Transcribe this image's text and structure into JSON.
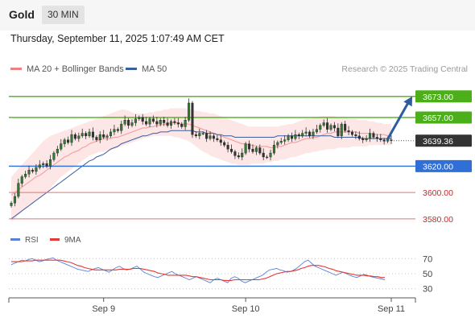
{
  "header": {
    "title": "Gold",
    "timeframe": "30 MIN",
    "datetime": "Thursday, September 11, 2025 1:07:49 AM CET"
  },
  "legend": {
    "ma20_label": "MA 20 + Bollinger Bands",
    "ma50_label": "MA 50",
    "credit": "Research © 2025 Trading Central"
  },
  "rsi_legend": {
    "rsi_label": "RSI",
    "ma_label": "9MA"
  },
  "colors": {
    "resistance": "#4caf1a",
    "support": "#2f6fd6",
    "support_strong": "#e57373",
    "ma20": "#f4a3a3",
    "ma50": "#3a5f9f",
    "bollinger_fill": "#fde2e2",
    "candle_up": "#2e7d32",
    "candle_down": "#333333",
    "current_price_tag": "#333333",
    "arrow": "#2d5d9f",
    "rsi_line": "#5b7fd6",
    "rsi_ma": "#e53935"
  },
  "chart_data": {
    "type": "candlestick",
    "title": "Gold",
    "timeframe": "30 MIN",
    "y_range": [
      3575,
      3690
    ],
    "current_price": 3639.36,
    "levels": [
      {
        "value": 3673.0,
        "label": "3673.00",
        "kind": "resistance"
      },
      {
        "value": 3657.0,
        "label": "3657.00",
        "kind": "resistance"
      },
      {
        "value": 3620.0,
        "label": "3620.00",
        "kind": "support"
      },
      {
        "value": 3600.0,
        "label": "3600.00",
        "kind": "support_strong"
      },
      {
        "value": 3580.0,
        "label": "3580.00",
        "kind": "support_strong"
      }
    ],
    "projection": {
      "from": 3640,
      "to": 3673
    },
    "x_labels": [
      "Sep 9",
      "Sep 10",
      "Sep 11"
    ],
    "x_label_index": [
      26,
      66,
      107
    ],
    "closes": [
      3592,
      3597,
      3607,
      3612,
      3614,
      3617,
      3616,
      3619,
      3621,
      3622,
      3620,
      3625,
      3630,
      3633,
      3637,
      3640,
      3638,
      3644,
      3641,
      3643,
      3645,
      3643,
      3646,
      3642,
      3640,
      3644,
      3642,
      3643,
      3646,
      3648,
      3647,
      3652,
      3655,
      3651,
      3653,
      3656,
      3657,
      3654,
      3652,
      3656,
      3654,
      3652,
      3655,
      3653,
      3651,
      3654,
      3653,
      3652,
      3650,
      3655,
      3668,
      3644,
      3643,
      3645,
      3645,
      3641,
      3643,
      3641,
      3640,
      3638,
      3636,
      3633,
      3631,
      3628,
      3627,
      3630,
      3637,
      3633,
      3631,
      3634,
      3630,
      3627,
      3627,
      3630,
      3636,
      3638,
      3639,
      3640,
      3643,
      3641,
      3644,
      3643,
      3645,
      3646,
      3643,
      3646,
      3648,
      3651,
      3653,
      3648,
      3651,
      3649,
      3643,
      3652,
      3647,
      3646,
      3644,
      3643,
      3641,
      3640,
      3641,
      3645,
      3642,
      3641,
      3640,
      3639,
      3640,
      3639.36
    ],
    "ma50": [
      3580,
      3582,
      3584,
      3586,
      3588,
      3590,
      3592,
      3594,
      3596,
      3598,
      3600,
      3602,
      3604,
      3606,
      3608,
      3610,
      3612,
      3614,
      3616,
      3618,
      3620,
      3622,
      3624,
      3625,
      3627,
      3628,
      3629,
      3631,
      3633,
      3634,
      3635,
      3637,
      3638,
      3639,
      3640,
      3641,
      3642,
      3643,
      3643,
      3644,
      3645,
      3645,
      3646,
      3646,
      3646,
      3647,
      3647,
      3647,
      3647,
      3647,
      3647,
      3647,
      3646,
      3646,
      3646,
      3645,
      3645,
      3645,
      3644,
      3644,
      3643,
      3643,
      3643,
      3642,
      3642,
      3642,
      3642,
      3642,
      3642,
      3642,
      3642,
      3642,
      3642,
      3642,
      3642,
      3643,
      3643,
      3643,
      3643,
      3643,
      3643,
      3643,
      3643,
      3643,
      3643,
      3643,
      3643,
      3643,
      3643,
      3643,
      3643,
      3642,
      3642,
      3642,
      3642,
      3642,
      3642,
      3642,
      3642,
      3641,
      3641,
      3641,
      3641,
      3641,
      3641,
      3641,
      3641,
      3641
    ],
    "ma20": [
      3598,
      3600,
      3602,
      3604,
      3606,
      3608,
      3610,
      3612,
      3613,
      3615,
      3617,
      3619,
      3621,
      3623,
      3625,
      3627,
      3628,
      3630,
      3631,
      3632,
      3634,
      3635,
      3637,
      3638,
      3639,
      3640,
      3641,
      3641,
      3641,
      3642,
      3642,
      3643,
      3644,
      3645,
      3646,
      3647,
      3648,
      3649,
      3649,
      3650,
      3650,
      3651,
      3651,
      3652,
      3652,
      3653,
      3653,
      3653,
      3652,
      3652,
      3652,
      3651,
      3650,
      3649,
      3648,
      3647,
      3646,
      3645,
      3644,
      3643,
      3642,
      3641,
      3640,
      3639,
      3638,
      3637,
      3637,
      3636,
      3636,
      3635,
      3635,
      3635,
      3635,
      3634,
      3634,
      3635,
      3635,
      3636,
      3637,
      3638,
      3638,
      3639,
      3640,
      3641,
      3641,
      3642,
      3642,
      3643,
      3644,
      3645,
      3645,
      3646,
      3646,
      3646,
      3646,
      3646,
      3646,
      3646,
      3645,
      3645,
      3645,
      3645,
      3644,
      3644,
      3644,
      3644,
      3643,
      3643
    ],
    "bb_upper": [
      3612,
      3615,
      3618,
      3621,
      3624,
      3627,
      3630,
      3633,
      3636,
      3639,
      3641,
      3643,
      3644,
      3645,
      3646,
      3647,
      3648,
      3649,
      3650,
      3651,
      3652,
      3653,
      3654,
      3655,
      3656,
      3657,
      3658,
      3659,
      3660,
      3661,
      3662,
      3663,
      3663,
      3662,
      3661,
      3660,
      3660,
      3660,
      3660,
      3661,
      3661,
      3662,
      3662,
      3663,
      3663,
      3664,
      3664,
      3664,
      3664,
      3664,
      3663,
      3663,
      3662,
      3662,
      3661,
      3661,
      3660,
      3660,
      3659,
      3658,
      3657,
      3656,
      3655,
      3654,
      3653,
      3652,
      3651,
      3650,
      3650,
      3650,
      3650,
      3650,
      3650,
      3650,
      3650,
      3650,
      3651,
      3651,
      3652,
      3652,
      3653,
      3654,
      3655,
      3656,
      3656,
      3657,
      3657,
      3658,
      3658,
      3658,
      3658,
      3658,
      3657,
      3657,
      3657,
      3656,
      3656,
      3656,
      3655,
      3655,
      3655,
      3654,
      3654,
      3653,
      3653,
      3652,
      3652,
      3652
    ],
    "bb_lower": [
      3578,
      3580,
      3583,
      3585,
      3588,
      3590,
      3592,
      3594,
      3596,
      3598,
      3600,
      3603,
      3606,
      3609,
      3612,
      3614,
      3616,
      3618,
      3620,
      3622,
      3624,
      3626,
      3628,
      3629,
      3630,
      3631,
      3631,
      3632,
      3632,
      3633,
      3634,
      3635,
      3636,
      3637,
      3638,
      3639,
      3640,
      3641,
      3642,
      3642,
      3643,
      3643,
      3643,
      3643,
      3643,
      3643,
      3642,
      3642,
      3641,
      3640,
      3639,
      3637,
      3635,
      3633,
      3631,
      3630,
      3628,
      3627,
      3626,
      3625,
      3624,
      3623,
      3622,
      3622,
      3621,
      3621,
      3621,
      3621,
      3622,
      3622,
      3622,
      3622,
      3623,
      3623,
      3624,
      3624,
      3625,
      3625,
      3626,
      3627,
      3627,
      3628,
      3629,
      3630,
      3630,
      3631,
      3631,
      3632,
      3632,
      3633,
      3633,
      3633,
      3634,
      3634,
      3634,
      3634,
      3635,
      3635,
      3635,
      3635,
      3635,
      3636,
      3636,
      3636,
      3636,
      3636,
      3636,
      3636
    ],
    "rsi": {
      "ylim": [
        20,
        80
      ],
      "ticks": [
        70,
        50,
        30
      ],
      "values": [
        62,
        64,
        66,
        68,
        67,
        69,
        70,
        68,
        66,
        67,
        69,
        70,
        71,
        68,
        66,
        64,
        62,
        60,
        58,
        56,
        55,
        54,
        53,
        55,
        57,
        58,
        56,
        54,
        52,
        55,
        58,
        60,
        57,
        55,
        56,
        58,
        60,
        56,
        52,
        50,
        48,
        46,
        45,
        47,
        49,
        51,
        53,
        50,
        48,
        46,
        44,
        42,
        44,
        46,
        44,
        42,
        40,
        38,
        42,
        44,
        42,
        40,
        38,
        44,
        46,
        44,
        40,
        38,
        40,
        42,
        44,
        46,
        48,
        52,
        55,
        56,
        57,
        55,
        54,
        52,
        53,
        55,
        58,
        62,
        66,
        68,
        64,
        60,
        58,
        56,
        54,
        52,
        50,
        48,
        50,
        52,
        50,
        48,
        46,
        45,
        47,
        49,
        48,
        46,
        45,
        44,
        43,
        42
      ],
      "ma9": [
        66,
        66,
        66,
        66,
        67,
        67,
        67,
        68,
        68,
        68,
        68,
        68,
        68,
        68,
        68,
        67,
        66,
        65,
        63,
        61,
        60,
        58,
        57,
        56,
        55,
        55,
        55,
        55,
        55,
        55,
        55,
        56,
        56,
        56,
        56,
        57,
        57,
        57,
        56,
        55,
        54,
        53,
        51,
        50,
        49,
        48,
        48,
        48,
        48,
        48,
        48,
        47,
        46,
        46,
        45,
        44,
        43,
        42,
        42,
        42,
        42,
        41,
        41,
        41,
        42,
        42,
        42,
        42,
        42,
        42,
        42,
        42,
        43,
        44,
        46,
        48,
        50,
        51,
        52,
        53,
        53,
        54,
        55,
        57,
        58,
        60,
        61,
        61,
        61,
        60,
        59,
        57,
        56,
        54,
        53,
        52,
        51,
        50,
        49,
        48,
        48,
        48,
        47,
        47,
        46,
        46,
        45,
        45
      ]
    }
  }
}
